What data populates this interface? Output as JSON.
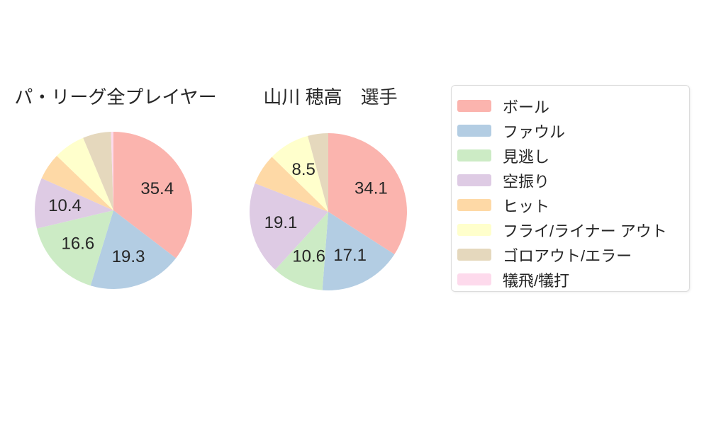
{
  "page": {
    "background": "#ffffff",
    "text_color": "#262626"
  },
  "palette": [
    "#fbb4ae",
    "#b3cde3",
    "#ccebc5",
    "#decbe4",
    "#fed9a6",
    "#ffffcc",
    "#e5d8bd",
    "#fddaec"
  ],
  "chart_data": [
    {
      "type": "pie",
      "title": "パ・リーグ全プレイヤー",
      "start_angle_deg": 0,
      "direction": "clockwise",
      "categories": [
        "ボール",
        "ファウル",
        "見逃し",
        "空振り",
        "ヒット",
        "フライ/ライナー アウト",
        "ゴロアウト/エラー",
        "犠飛/犠打"
      ],
      "values": [
        35.4,
        19.3,
        16.6,
        10.4,
        5.5,
        6.5,
        5.8,
        0.5
      ],
      "labels_shown": [
        "35.4",
        "19.3",
        "16.6",
        "10.4",
        null,
        null,
        null,
        null
      ],
      "colors": [
        "#fbb4ae",
        "#b3cde3",
        "#ccebc5",
        "#decbe4",
        "#fed9a6",
        "#ffffcc",
        "#e5d8bd",
        "#fddaec"
      ],
      "legend_position": "right",
      "grid": false
    },
    {
      "type": "pie",
      "title": "山川 穂高　選手",
      "start_angle_deg": 0,
      "direction": "clockwise",
      "categories": [
        "ボール",
        "ファウル",
        "見逃し",
        "空振り",
        "ヒット",
        "フライ/ライナー アウト",
        "ゴロアウト/エラー",
        "犠飛/犠打"
      ],
      "values": [
        34.1,
        17.1,
        10.6,
        19.1,
        6.4,
        8.5,
        4.2,
        0
      ],
      "labels_shown": [
        "34.1",
        "17.1",
        "10.6",
        "19.1",
        null,
        "8.5",
        null,
        null
      ],
      "colors": [
        "#fbb4ae",
        "#b3cde3",
        "#ccebc5",
        "#decbe4",
        "#fed9a6",
        "#ffffcc",
        "#e5d8bd",
        "#fddaec"
      ],
      "legend_position": "right",
      "grid": false
    }
  ],
  "legend": {
    "items": [
      {
        "label": "ボール",
        "color": "#fbb4ae"
      },
      {
        "label": "ファウル",
        "color": "#b3cde3"
      },
      {
        "label": "見逃し",
        "color": "#ccebc5"
      },
      {
        "label": "空振り",
        "color": "#decbe4"
      },
      {
        "label": "ヒット",
        "color": "#fed9a6"
      },
      {
        "label": "フライ/ライナー アウト",
        "color": "#ffffcc"
      },
      {
        "label": "ゴロアウト/エラー",
        "color": "#e5d8bd"
      },
      {
        "label": "犠飛/犠打",
        "color": "#fddaec"
      }
    ],
    "border_color": "#dcdcdc"
  }
}
